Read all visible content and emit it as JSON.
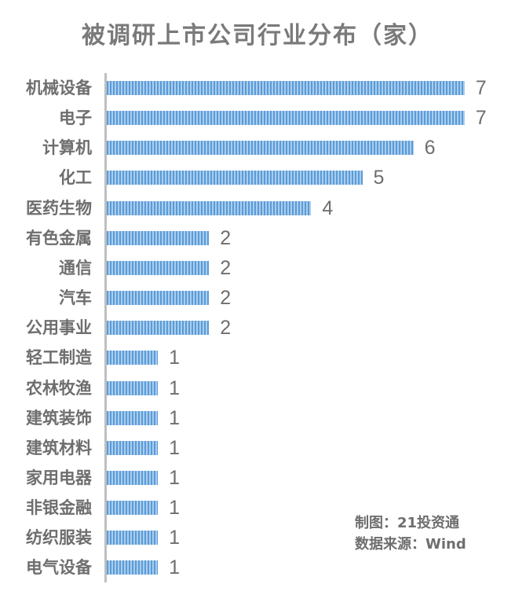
{
  "chart_data": {
    "type": "bar",
    "orientation": "horizontal",
    "title": "被调研上市公司行业分布（家）",
    "xlabel": "",
    "ylabel": "",
    "grid": false,
    "legend": null,
    "categories": [
      "机械设备",
      "电子",
      "计算机",
      "化工",
      "医药生物",
      "有色金属",
      "通信",
      "汽车",
      "公用事业",
      "轻工制造",
      "农林牧渔",
      "建筑装饰",
      "建筑材料",
      "家用电器",
      "非银金融",
      "纺织服装",
      "电气设备"
    ],
    "values": [
      7,
      7,
      6,
      5,
      4,
      2,
      2,
      2,
      2,
      1,
      1,
      1,
      1,
      1,
      1,
      1,
      1
    ],
    "bar_color": "#5b9bd5",
    "data_labels": true
  },
  "credits": {
    "maker": "制图：21投资通",
    "source": "数据来源：Wind"
  }
}
